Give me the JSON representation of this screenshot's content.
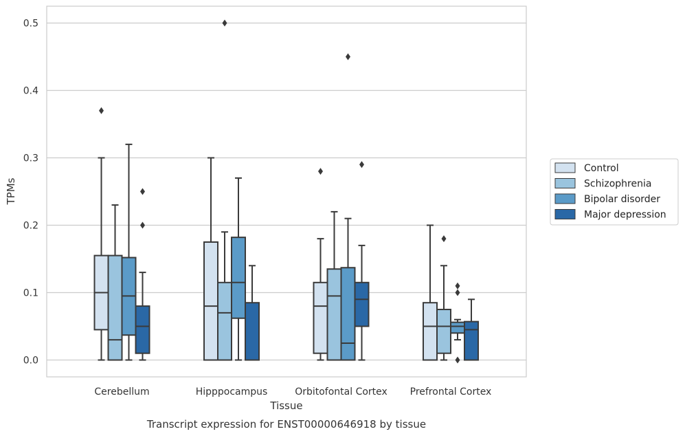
{
  "chart_data": {
    "type": "box",
    "xlabel": "Tissue",
    "ylabel": "TPMs",
    "caption": "Transcript expression for ENST00000646918 by tissue",
    "ylim": [
      -0.025,
      0.525
    ],
    "yticks": [
      "0.0",
      "0.1",
      "0.2",
      "0.3",
      "0.4",
      "0.5"
    ],
    "grid": "horizontal",
    "legend_position": "right",
    "categories": [
      "Cerebellum",
      "Hipppocampus",
      "Orbitofontal Cortex",
      "Prefrontal Cortex"
    ],
    "series": [
      {
        "name": "Control",
        "color": "#d3e2f0",
        "boxes": [
          {
            "whisker_low": 0.0,
            "q1": 0.045,
            "median": 0.1,
            "q3": 0.155,
            "whisker_high": 0.3,
            "outliers": [
              0.37
            ]
          },
          {
            "whisker_low": 0.0,
            "q1": 0.0,
            "median": 0.08,
            "q3": 0.175,
            "whisker_high": 0.3,
            "outliers": []
          },
          {
            "whisker_low": 0.0,
            "q1": 0.01,
            "median": 0.08,
            "q3": 0.115,
            "whisker_high": 0.18,
            "outliers": [
              0.28
            ]
          },
          {
            "whisker_low": 0.0,
            "q1": 0.0,
            "median": 0.05,
            "q3": 0.085,
            "whisker_high": 0.2,
            "outliers": []
          }
        ]
      },
      {
        "name": "Schizophrenia",
        "color": "#9ac4de",
        "boxes": [
          {
            "whisker_low": 0.0,
            "q1": 0.0,
            "median": 0.03,
            "q3": 0.155,
            "whisker_high": 0.23,
            "outliers": []
          },
          {
            "whisker_low": 0.0,
            "q1": 0.0,
            "median": 0.07,
            "q3": 0.115,
            "whisker_high": 0.19,
            "outliers": [
              0.5
            ]
          },
          {
            "whisker_low": 0.0,
            "q1": 0.0,
            "median": 0.095,
            "q3": 0.135,
            "whisker_high": 0.22,
            "outliers": []
          },
          {
            "whisker_low": 0.0,
            "q1": 0.01,
            "median": 0.05,
            "q3": 0.075,
            "whisker_high": 0.14,
            "outliers": [
              0.18
            ]
          }
        ]
      },
      {
        "name": "Bipolar disorder",
        "color": "#5b9bc8",
        "boxes": [
          {
            "whisker_low": 0.0,
            "q1": 0.037,
            "median": 0.095,
            "q3": 0.152,
            "whisker_high": 0.32,
            "outliers": []
          },
          {
            "whisker_low": 0.0,
            "q1": 0.062,
            "median": 0.115,
            "q3": 0.182,
            "whisker_high": 0.27,
            "outliers": []
          },
          {
            "whisker_low": 0.0,
            "q1": 0.0,
            "median": 0.025,
            "q3": 0.137,
            "whisker_high": 0.21,
            "outliers": [
              0.45
            ]
          },
          {
            "whisker_low": 0.03,
            "q1": 0.04,
            "median": 0.05,
            "q3": 0.056,
            "whisker_high": 0.06,
            "outliers": [
              0.11,
              0.1,
              0.0
            ]
          }
        ]
      },
      {
        "name": "Major depression",
        "color": "#2a68a6",
        "boxes": [
          {
            "whisker_low": 0.0,
            "q1": 0.01,
            "median": 0.05,
            "q3": 0.08,
            "whisker_high": 0.13,
            "outliers": [
              0.25,
              0.2
            ]
          },
          {
            "whisker_low": 0.0,
            "q1": 0.0,
            "median": 0.0,
            "q3": 0.085,
            "whisker_high": 0.14,
            "outliers": []
          },
          {
            "whisker_low": 0.0,
            "q1": 0.05,
            "median": 0.09,
            "q3": 0.115,
            "whisker_high": 0.17,
            "outliers": [
              0.29
            ]
          },
          {
            "whisker_low": 0.0,
            "q1": 0.0,
            "median": 0.045,
            "q3": 0.057,
            "whisker_high": 0.09,
            "outliers": []
          }
        ]
      }
    ]
  }
}
